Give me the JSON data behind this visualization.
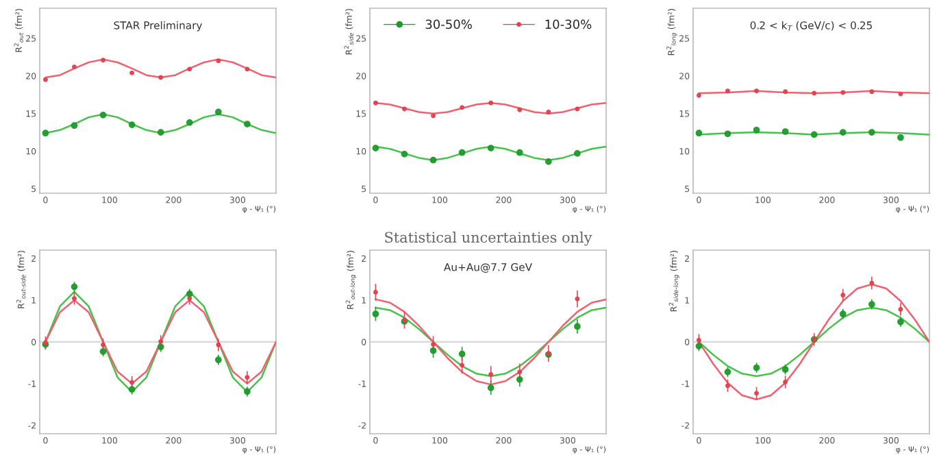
{
  "chart_data": [
    {
      "type": "scatter",
      "annotations": [
        "STAR Preliminary"
      ],
      "xlabel": "φ - Ψ₁ (°)",
      "ylabel": "R$^{2}$$_{out}$ (fm²)",
      "xlim": [
        -9,
        360
      ],
      "ylim": [
        4.4,
        29
      ],
      "xticks": [
        0,
        100,
        200,
        300
      ],
      "yticks": [
        5,
        10,
        15,
        20,
        25
      ],
      "x": [
        0,
        45,
        90,
        135,
        180,
        225,
        270,
        315
      ],
      "series": [
        {
          "color": "#1e9a2a",
          "marker": "circle",
          "values": [
            12.4,
            13.4,
            14.8,
            13.5,
            12.5,
            13.8,
            15.2,
            13.6
          ]
        },
        {
          "color": "#e0404e",
          "marker": "circle",
          "values": [
            19.5,
            21.2,
            22.1,
            20.4,
            19.8,
            20.9,
            22.0,
            20.9
          ]
        },
        {
          "type": "line",
          "color": "#45c24a",
          "x": [
            0,
            22.5,
            45,
            67.5,
            90,
            112.5,
            135,
            157.5,
            180,
            202.5,
            225,
            247.5,
            270,
            292.5,
            315,
            337.5,
            360
          ],
          "values": [
            12.4,
            12.8,
            13.6,
            14.5,
            14.9,
            14.5,
            13.6,
            12.8,
            12.4,
            12.8,
            13.6,
            14.5,
            14.9,
            14.5,
            13.6,
            12.8,
            12.4
          ]
        },
        {
          "type": "line",
          "color": "#f0606e",
          "x": [
            0,
            22.5,
            45,
            67.5,
            90,
            112.5,
            135,
            157.5,
            180,
            202.5,
            225,
            247.5,
            270,
            292.5,
            315,
            337.5,
            360
          ],
          "values": [
            19.8,
            20.1,
            21.0,
            21.8,
            22.2,
            21.8,
            21.0,
            20.1,
            19.8,
            20.1,
            21.0,
            21.8,
            22.2,
            21.8,
            21.0,
            20.1,
            19.8
          ]
        }
      ]
    },
    {
      "type": "scatter",
      "legend": "top",
      "xlabel": "φ - Ψ₁ (°)",
      "ylabel": "R$^{2}$$_{side}$ (fm²)",
      "xlim": [
        -9,
        360
      ],
      "ylim": [
        4.4,
        29
      ],
      "xticks": [
        0,
        100,
        200,
        300
      ],
      "yticks": [
        5,
        10,
        15,
        20,
        25
      ],
      "x": [
        0,
        45,
        90,
        135,
        180,
        225,
        270,
        315
      ],
      "series": [
        {
          "name": "30-50%",
          "color": "#1e9a2a",
          "marker": "circle",
          "values": [
            10.4,
            9.6,
            8.8,
            9.8,
            10.4,
            9.8,
            8.6,
            9.7
          ]
        },
        {
          "name": "10-30%",
          "color": "#e0404e",
          "marker": "circle",
          "values": [
            16.4,
            15.6,
            14.7,
            15.8,
            16.4,
            15.5,
            15.2,
            15.6
          ]
        },
        {
          "type": "line",
          "color": "#45c24a",
          "x": [
            0,
            22.5,
            45,
            67.5,
            90,
            112.5,
            135,
            157.5,
            180,
            202.5,
            225,
            247.5,
            270,
            292.5,
            315,
            337.5,
            360
          ],
          "values": [
            10.6,
            10.3,
            9.7,
            9.1,
            8.8,
            9.1,
            9.7,
            10.3,
            10.6,
            10.3,
            9.7,
            9.1,
            8.8,
            9.1,
            9.7,
            10.3,
            10.6
          ]
        },
        {
          "type": "line",
          "color": "#f0606e",
          "x": [
            0,
            22.5,
            45,
            67.5,
            90,
            112.5,
            135,
            157.5,
            180,
            202.5,
            225,
            247.5,
            270,
            292.5,
            315,
            337.5,
            360
          ],
          "values": [
            16.4,
            16.2,
            15.7,
            15.2,
            15.0,
            15.2,
            15.7,
            16.2,
            16.4,
            16.2,
            15.7,
            15.2,
            15.0,
            15.2,
            15.7,
            16.2,
            16.4
          ]
        }
      ]
    },
    {
      "type": "scatter",
      "annotations": [
        "0.2 < k$_{T}$ (GeV/c) < 0.25"
      ],
      "xlabel": "φ - Ψ₁ (°)",
      "ylabel": "R$^{2}$$_{long}$ (fm²)",
      "xlim": [
        -9,
        360
      ],
      "ylim": [
        4.4,
        29
      ],
      "xticks": [
        0,
        100,
        200,
        300
      ],
      "yticks": [
        5,
        10,
        15,
        20,
        25
      ],
      "x": [
        0,
        45,
        90,
        135,
        180,
        225,
        270,
        315
      ],
      "series": [
        {
          "color": "#1e9a2a",
          "marker": "circle",
          "values": [
            12.4,
            12.3,
            12.8,
            12.6,
            12.2,
            12.5,
            12.5,
            11.8
          ]
        },
        {
          "color": "#e0404e",
          "marker": "circle",
          "values": [
            17.4,
            18.0,
            18.0,
            17.9,
            17.7,
            17.8,
            17.9,
            17.6
          ]
        },
        {
          "type": "line",
          "color": "#45c24a",
          "x": [
            0,
            45,
            90,
            135,
            180,
            225,
            270,
            315,
            360
          ],
          "values": [
            12.2,
            12.4,
            12.5,
            12.4,
            12.2,
            12.4,
            12.5,
            12.4,
            12.2
          ]
        },
        {
          "type": "line",
          "color": "#f0606e",
          "x": [
            0,
            45,
            90,
            135,
            180,
            225,
            270,
            315,
            360
          ],
          "values": [
            17.7,
            17.8,
            18.0,
            17.8,
            17.7,
            17.8,
            18.0,
            17.8,
            17.7
          ]
        }
      ]
    },
    {
      "type": "scatter",
      "xlabel": "φ - Ψ₁ (°)",
      "ylabel": "R$^{2}$$_{out-side}$ (fm²)",
      "xlim": [
        -9,
        360
      ],
      "ylim": [
        -2.2,
        2.2
      ],
      "xticks": [
        0,
        100,
        200,
        300
      ],
      "yticks": [
        -2,
        -1,
        0,
        1,
        2
      ],
      "x": [
        0,
        45,
        90,
        135,
        180,
        225,
        270,
        315
      ],
      "ref_lines": [
        {
          "axis": "y",
          "value": 0,
          "color": "#d9d9d9"
        }
      ],
      "series": [
        {
          "color": "#1e9a2a",
          "marker": "circle",
          "values": [
            -0.06,
            1.32,
            -0.23,
            -1.14,
            -0.12,
            1.15,
            -0.43,
            -1.19
          ],
          "errors": [
            0.12,
            0.12,
            0.12,
            0.12,
            0.12,
            0.12,
            0.12,
            0.12
          ]
        },
        {
          "color": "#e0404e",
          "marker": "circle",
          "values": [
            -0.02,
            1.04,
            -0.07,
            -0.97,
            0.01,
            1.04,
            -0.07,
            -0.85
          ],
          "errors": [
            0.15,
            0.15,
            0.15,
            0.15,
            0.15,
            0.15,
            0.15,
            0.15
          ]
        },
        {
          "type": "line",
          "color": "#45c24a",
          "x": [
            0,
            22.5,
            45,
            67.5,
            90,
            112.5,
            135,
            157.5,
            180,
            202.5,
            225,
            247.5,
            270,
            292.5,
            315,
            337.5,
            360
          ],
          "values": [
            0,
            0.85,
            1.2,
            0.85,
            0,
            -0.85,
            -1.2,
            -0.85,
            0,
            0.85,
            1.2,
            0.85,
            0,
            -0.85,
            -1.2,
            -0.85,
            0
          ]
        },
        {
          "type": "line",
          "color": "#f0606e",
          "x": [
            0,
            22.5,
            45,
            67.5,
            90,
            112.5,
            135,
            157.5,
            180,
            202.5,
            225,
            247.5,
            270,
            292.5,
            315,
            337.5,
            360
          ],
          "values": [
            0,
            0.71,
            1.0,
            0.71,
            0,
            -0.71,
            -1.0,
            -0.71,
            0,
            0.71,
            1.0,
            0.71,
            0,
            -0.71,
            -1.0,
            -0.71,
            0
          ]
        }
      ]
    },
    {
      "type": "scatter",
      "title": "Statistical uncertainties only",
      "annotations": [
        "Au+Au@7.7 GeV"
      ],
      "xlabel": "φ - Ψ₁ (°)",
      "ylabel": "R$^{2}$$_{out-long}$ (fm²)",
      "xlim": [
        -9,
        360
      ],
      "ylim": [
        -2.2,
        2.2
      ],
      "xticks": [
        0,
        100,
        200,
        300
      ],
      "yticks": [
        -2,
        -1,
        0,
        1,
        2
      ],
      "x": [
        0,
        45,
        90,
        135,
        180,
        225,
        270,
        315
      ],
      "ref_lines": [
        {
          "axis": "y",
          "value": 0,
          "color": "#d9d9d9"
        }
      ],
      "series": [
        {
          "color": "#1e9a2a",
          "marker": "circle",
          "values": [
            0.67,
            0.49,
            -0.21,
            -0.29,
            -1.1,
            -0.9,
            -0.3,
            0.37
          ],
          "errors": [
            0.17,
            null,
            0.17,
            0.17,
            0.17,
            0.17,
            null,
            0.17
          ]
        },
        {
          "color": "#e0404e",
          "marker": "circle",
          "values": [
            1.19,
            0.52,
            -0.06,
            -0.56,
            -0.78,
            -0.72,
            -0.28,
            1.03
          ],
          "errors": [
            0.2,
            0.2,
            0.2,
            0.2,
            0.2,
            0.2,
            0.2,
            0.2
          ]
        },
        {
          "type": "line",
          "color": "#45c24a",
          "x": [
            0,
            22.5,
            45,
            67.5,
            90,
            112.5,
            135,
            157.5,
            180,
            202.5,
            225,
            247.5,
            270,
            292.5,
            315,
            337.5,
            360
          ],
          "values": [
            0.82,
            0.76,
            0.58,
            0.31,
            0,
            -0.31,
            -0.58,
            -0.76,
            -0.82,
            -0.76,
            -0.58,
            -0.31,
            0,
            0.31,
            0.58,
            0.76,
            0.82
          ]
        },
        {
          "type": "line",
          "color": "#f0606e",
          "x": [
            0,
            22.5,
            45,
            67.5,
            90,
            112.5,
            135,
            157.5,
            180,
            202.5,
            225,
            247.5,
            270,
            292.5,
            315,
            337.5,
            360
          ],
          "values": [
            1.02,
            0.94,
            0.72,
            0.39,
            0,
            -0.39,
            -0.72,
            -0.94,
            -1.02,
            -0.94,
            -0.72,
            -0.39,
            0,
            0.39,
            0.72,
            0.94,
            1.02
          ]
        }
      ]
    },
    {
      "type": "scatter",
      "xlabel": "φ - Ψ₁ (°)",
      "ylabel": "R$^{2}$$_{side-long}$ (fm²)",
      "xlim": [
        -9,
        360
      ],
      "ylim": [
        -2.2,
        2.2
      ],
      "xticks": [
        0,
        100,
        200,
        300
      ],
      "yticks": [
        -2,
        -1,
        0,
        1,
        2
      ],
      "x": [
        0,
        45,
        90,
        135,
        180,
        225,
        270,
        315
      ],
      "ref_lines": [
        {
          "axis": "y",
          "value": 0,
          "color": "#d9d9d9"
        }
      ],
      "series": [
        {
          "color": "#1e9a2a",
          "marker": "circle",
          "values": [
            -0.1,
            -0.72,
            -0.62,
            -0.66,
            0.06,
            0.67,
            0.9,
            0.48
          ],
          "errors": [
            0.12,
            0.12,
            0.12,
            0.12,
            null,
            0.12,
            0.12,
            0.12
          ]
        },
        {
          "color": "#e0404e",
          "marker": "circle",
          "values": [
            0.04,
            -1.05,
            -1.23,
            -0.96,
            0.06,
            1.12,
            1.41,
            0.78
          ],
          "errors": [
            0.15,
            0.15,
            0.15,
            0.15,
            0.15,
            0.15,
            0.15,
            0.15
          ]
        },
        {
          "type": "line",
          "color": "#45c24a",
          "x": [
            0,
            22.5,
            45,
            67.5,
            90,
            112.5,
            135,
            157.5,
            180,
            202.5,
            225,
            247.5,
            270,
            292.5,
            315,
            337.5,
            360
          ],
          "values": [
            0,
            -0.31,
            -0.58,
            -0.76,
            -0.82,
            -0.76,
            -0.58,
            -0.31,
            0,
            0.31,
            0.58,
            0.76,
            0.82,
            0.76,
            0.58,
            0.31,
            0
          ]
        },
        {
          "type": "line",
          "color": "#f0606e",
          "x": [
            0,
            22.5,
            45,
            67.5,
            90,
            112.5,
            135,
            157.5,
            180,
            202.5,
            225,
            247.5,
            270,
            292.5,
            315,
            337.5,
            360
          ],
          "values": [
            0,
            -0.53,
            -0.98,
            -1.28,
            -1.38,
            -1.28,
            -0.98,
            -0.53,
            0,
            0.53,
            0.98,
            1.28,
            1.38,
            1.28,
            0.98,
            0.53,
            0
          ]
        }
      ]
    }
  ]
}
